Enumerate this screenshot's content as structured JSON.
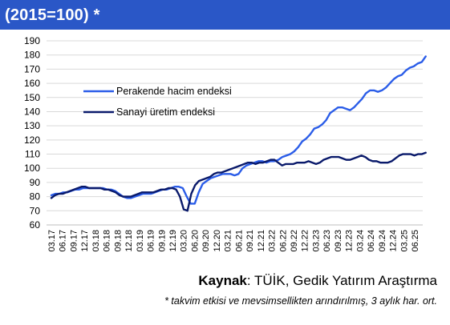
{
  "header": {
    "title": "(2015=100) *"
  },
  "footer": {
    "source_label": "Kaynak",
    "source_text": ": TÜİK, Gedik Yatırım Araştırma",
    "note": "* takvim etkisi ve mevsimsellikten arındırılmış, 3 aylık har. ort."
  },
  "colors": {
    "header_bg": "#2a57c7",
    "series_retail": "#2b5de8",
    "series_industry": "#0a1a6b"
  },
  "chart_data": {
    "type": "line",
    "title": "(2015=100) *",
    "xlabel": "",
    "ylabel": "",
    "ylim": [
      60,
      190
    ],
    "yticks": [
      60,
      70,
      80,
      90,
      100,
      110,
      120,
      130,
      140,
      150,
      160,
      170,
      180,
      190
    ],
    "grid": true,
    "legend_position": "upper-left",
    "x_tick_labels": [
      "03.17",
      "06.17",
      "09.17",
      "12.17",
      "03.18",
      "06.18",
      "09.18",
      "12.18",
      "03.19",
      "06.19",
      "09.19",
      "12.19",
      "03.20",
      "06.20",
      "09.20",
      "12.20",
      "03.21",
      "06.21",
      "09.21",
      "12.21",
      "03.22",
      "06.22",
      "09.22",
      "12.22",
      "03.23",
      "06.23",
      "09.23",
      "12.23",
      "03.24",
      "06.24",
      "09.24",
      "12.24",
      "03.25",
      "06.25"
    ],
    "x_start": "2017-03",
    "series": [
      {
        "name": "Perakende hacim endeksi",
        "color": "#2b5de8",
        "values": [
          81,
          82,
          82,
          83,
          83,
          84,
          85,
          85,
          86,
          86,
          86,
          86,
          86,
          86,
          85,
          85,
          84,
          82,
          80,
          79,
          79,
          80,
          81,
          82,
          82,
          82,
          83,
          84,
          85,
          85,
          86,
          87,
          87,
          86,
          80,
          75,
          75,
          83,
          89,
          91,
          93,
          94,
          95,
          96,
          96,
          96,
          95,
          96,
          100,
          102,
          103,
          104,
          105,
          105,
          104,
          105,
          105,
          106,
          108,
          109,
          110,
          112,
          115,
          119,
          121,
          124,
          128,
          129,
          131,
          134,
          139,
          141,
          143,
          143,
          142,
          141,
          143,
          146,
          149,
          153,
          155,
          155,
          154,
          155,
          157,
          160,
          163,
          165,
          166,
          169,
          171,
          172,
          174,
          175,
          179
        ]
      },
      {
        "name": "Sanayi üretim endeksi",
        "color": "#0a1a6b",
        "values": [
          79,
          81,
          82,
          82,
          83,
          84,
          85,
          86,
          87,
          87,
          86,
          86,
          86,
          86,
          85,
          85,
          84,
          83,
          81,
          80,
          80,
          80,
          81,
          82,
          83,
          83,
          83,
          83,
          84,
          85,
          85,
          86,
          86,
          85,
          80,
          71,
          70,
          82,
          88,
          91,
          92,
          93,
          94,
          96,
          97,
          97,
          98,
          99,
          100,
          101,
          102,
          103,
          104,
          104,
          103,
          104,
          104,
          105,
          106,
          106,
          104,
          102,
          103,
          103,
          103,
          104,
          104,
          104,
          105,
          104,
          103,
          104,
          106,
          107,
          108,
          108,
          108,
          107,
          106,
          106,
          107,
          108,
          109,
          108,
          106,
          105,
          105,
          104,
          104,
          104,
          105,
          107,
          109,
          110,
          110,
          110,
          109,
          110,
          110,
          111
        ]
      }
    ]
  }
}
